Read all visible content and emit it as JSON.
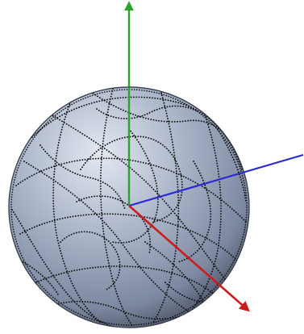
{
  "figure": {
    "background_color": "#ffffff",
    "sphere": {
      "highlight_color": "#e3e8f1",
      "mid_color": "#a9b4c8",
      "base_color": "#7c88a0",
      "shadow_color": "#4a5163",
      "rim_color": "#3c4252"
    },
    "trajectory": {
      "color": "#101010",
      "style": "dotted"
    },
    "axes": [
      {
        "id": "y",
        "color": "#2ca12c"
      },
      {
        "id": "z",
        "color": "#2a2ad0"
      },
      {
        "id": "x",
        "color": "#cc1c1c"
      }
    ]
  }
}
